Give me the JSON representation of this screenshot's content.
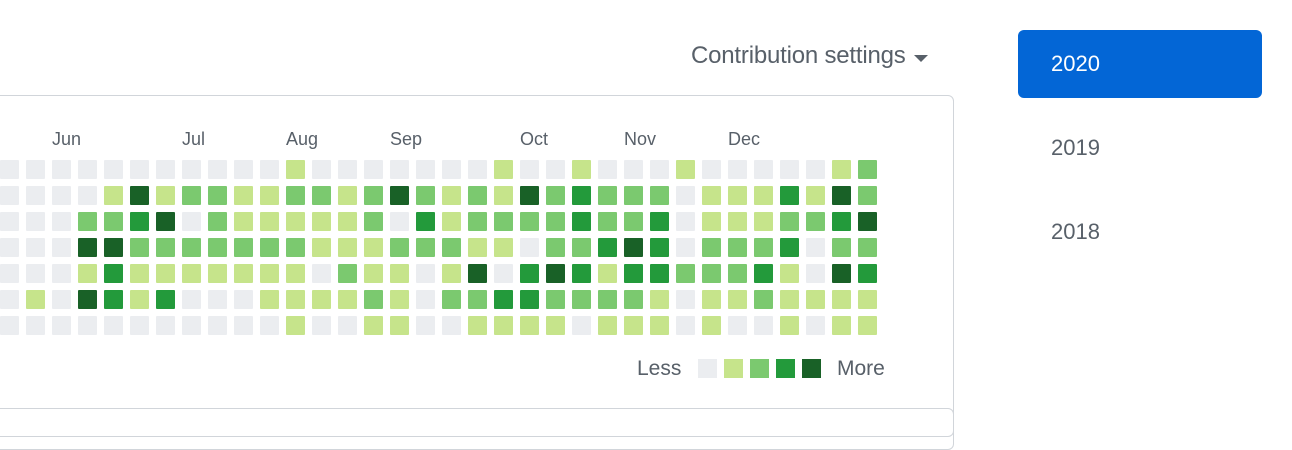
{
  "header": {
    "settings_label": "Contribution settings"
  },
  "graph": {
    "months": [
      {
        "label": "Jun",
        "col": 2
      },
      {
        "label": "Jul",
        "col": 7
      },
      {
        "label": "Aug",
        "col": 11
      },
      {
        "label": "Sep",
        "col": 15
      },
      {
        "label": "Oct",
        "col": 20
      },
      {
        "label": "Nov",
        "col": 24
      },
      {
        "label": "Dec",
        "col": 28
      }
    ],
    "level_colors": [
      "#ebedf0",
      "#c6e48b",
      "#7bc96f",
      "#239a3b",
      "#196127"
    ],
    "levels_by_row": [
      [
        0,
        0,
        0,
        0,
        0,
        0,
        0,
        0,
        0,
        0,
        0,
        1,
        0,
        0,
        0,
        0,
        0,
        0,
        0,
        1,
        0,
        0,
        1,
        0,
        0,
        0,
        1,
        0,
        0,
        0,
        0,
        0,
        1,
        2
      ],
      [
        0,
        0,
        0,
        0,
        1,
        4,
        1,
        2,
        2,
        1,
        1,
        2,
        2,
        1,
        2,
        4,
        2,
        1,
        2,
        1,
        4,
        2,
        3,
        2,
        2,
        2,
        0,
        1,
        1,
        1,
        3,
        1,
        4,
        2
      ],
      [
        0,
        0,
        0,
        2,
        2,
        3,
        4,
        0,
        2,
        1,
        1,
        1,
        1,
        1,
        2,
        0,
        3,
        1,
        2,
        2,
        2,
        2,
        3,
        2,
        2,
        3,
        0,
        1,
        1,
        1,
        2,
        2,
        3,
        4
      ],
      [
        0,
        0,
        0,
        4,
        4,
        2,
        2,
        2,
        2,
        2,
        2,
        2,
        1,
        1,
        1,
        2,
        2,
        2,
        1,
        1,
        0,
        2,
        2,
        3,
        4,
        3,
        0,
        2,
        2,
        2,
        3,
        0,
        2,
        2
      ],
      [
        0,
        0,
        0,
        1,
        3,
        1,
        1,
        1,
        1,
        1,
        1,
        1,
        0,
        2,
        1,
        1,
        0,
        1,
        4,
        0,
        3,
        4,
        3,
        1,
        3,
        3,
        2,
        2,
        2,
        3,
        1,
        0,
        4,
        3
      ],
      [
        0,
        1,
        0,
        4,
        3,
        1,
        3,
        0,
        0,
        0,
        1,
        1,
        1,
        1,
        2,
        1,
        0,
        2,
        2,
        3,
        3,
        2,
        2,
        2,
        2,
        1,
        0,
        1,
        1,
        2,
        1,
        1,
        1,
        1
      ],
      [
        0,
        0,
        0,
        0,
        0,
        0,
        0,
        0,
        0,
        0,
        0,
        1,
        0,
        0,
        1,
        1,
        0,
        0,
        1,
        1,
        1,
        1,
        0,
        1,
        1,
        1,
        0,
        1,
        0,
        0,
        1,
        0,
        1,
        1
      ]
    ],
    "legend": {
      "less": "Less",
      "more": "More"
    }
  },
  "years": [
    {
      "label": "2020",
      "active": true
    },
    {
      "label": "2019",
      "active": false
    },
    {
      "label": "2018",
      "active": false
    }
  ]
}
